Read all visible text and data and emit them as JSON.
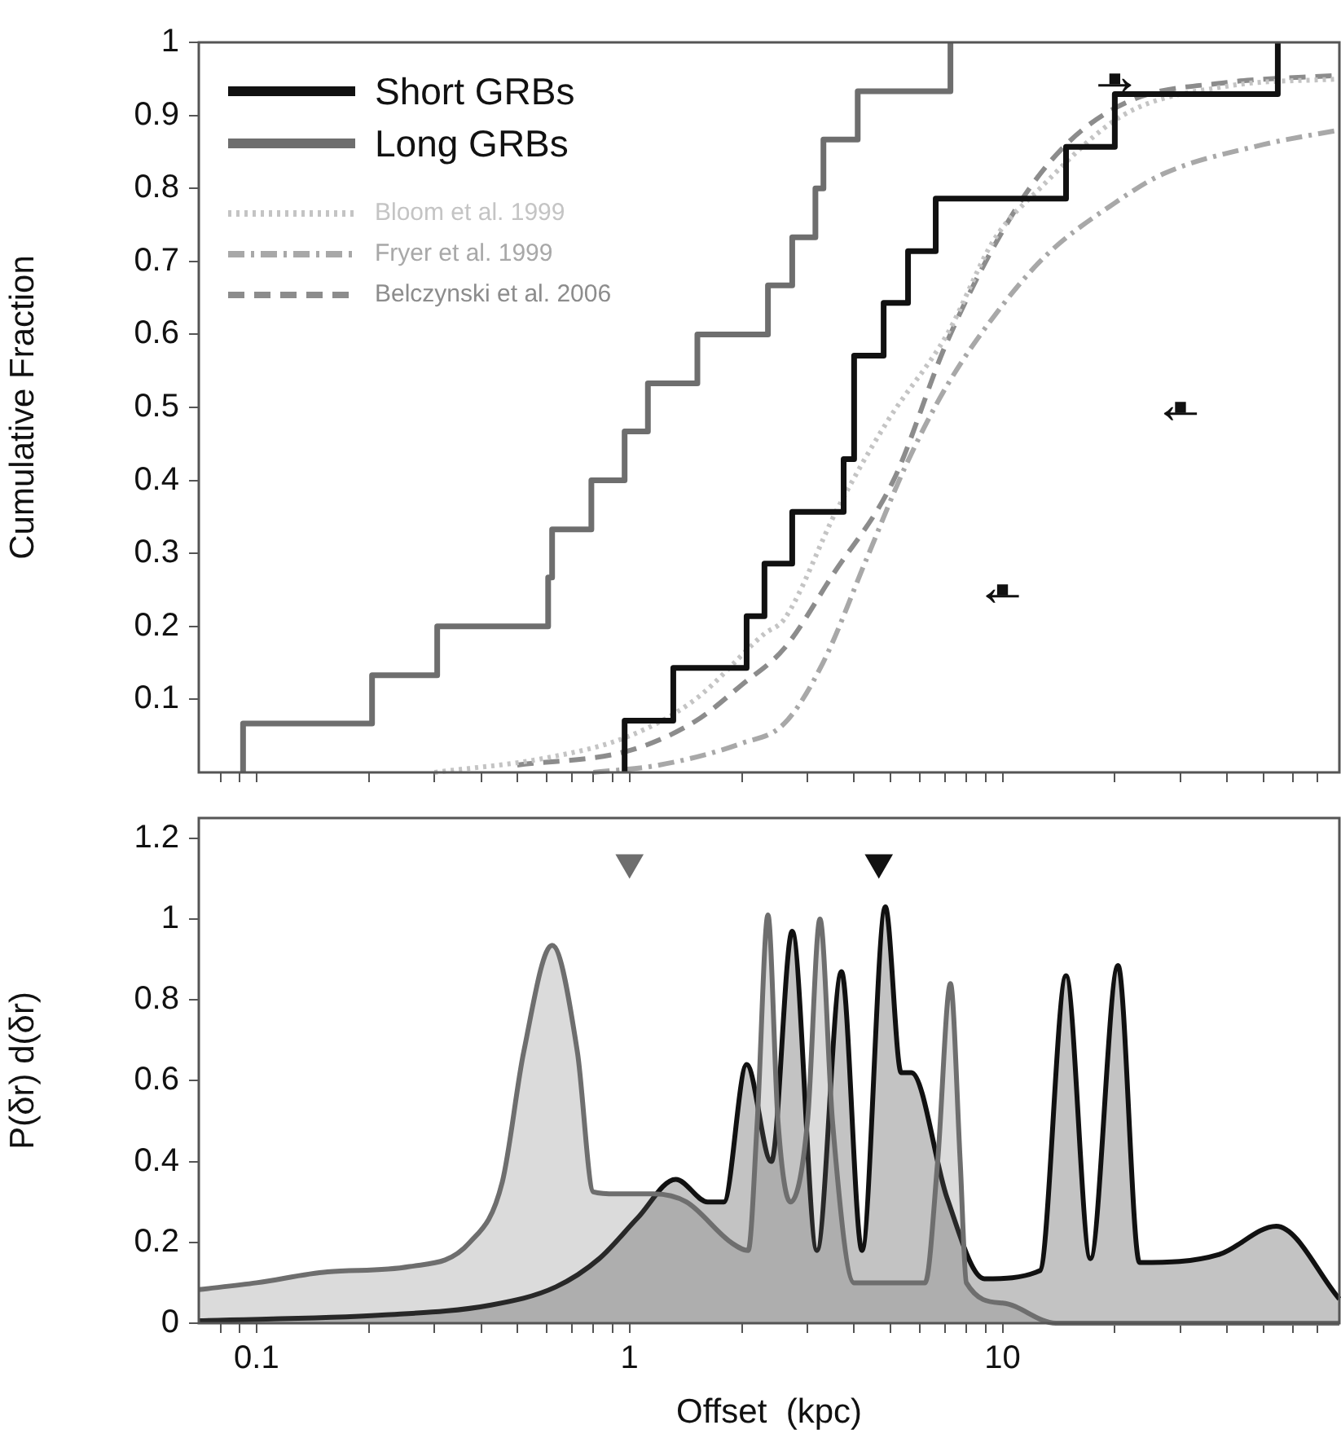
{
  "chart_data": [
    {
      "type": "line",
      "ylabel": "Cumulative Fraction",
      "log": "x",
      "xlim": [
        0.07,
        80
      ],
      "xticks": [
        {
          "value": 0.08,
          "label": null
        },
        {
          "value": 0.09,
          "label": null
        },
        {
          "value": 0.1,
          "label": null
        },
        {
          "value": 0.2,
          "label": null
        },
        {
          "value": 0.3,
          "label": null
        },
        {
          "value": 0.4,
          "label": null
        },
        {
          "value": 0.5,
          "label": null
        },
        {
          "value": 0.6,
          "label": null
        },
        {
          "value": 0.7,
          "label": null
        },
        {
          "value": 0.8,
          "label": null
        },
        {
          "value": 0.9,
          "label": null
        },
        {
          "value": 1,
          "label": null
        },
        {
          "value": 2,
          "label": null
        },
        {
          "value": 3,
          "label": null
        },
        {
          "value": 4,
          "label": null
        },
        {
          "value": 5,
          "label": null
        },
        {
          "value": 6,
          "label": null
        },
        {
          "value": 7,
          "label": null
        },
        {
          "value": 8,
          "label": null
        },
        {
          "value": 9,
          "label": null
        },
        {
          "value": 10,
          "label": null
        },
        {
          "value": 20,
          "label": null
        },
        {
          "value": 30,
          "label": null
        },
        {
          "value": 40,
          "label": null
        },
        {
          "value": 50,
          "label": null
        },
        {
          "value": 60,
          "label": null
        },
        {
          "value": 70,
          "label": null
        }
      ],
      "ylim": [
        0,
        1
      ],
      "yticks": [
        0.1,
        0.2,
        0.3,
        0.4,
        0.5,
        0.6,
        0.7,
        0.8,
        0.9,
        1
      ],
      "tick_labels": "y",
      "legend": "top left",
      "series": [
        {
          "name": "Short GRBs",
          "type": "step",
          "color": "#111111",
          "x": [
            0.97,
            0.97,
            1.31,
            2.06,
            2.3,
            2.73,
            3.75,
            4.0,
            4.0,
            4.8,
            5.58,
            6.62,
            14.8,
            20,
            54.7
          ],
          "values": [
            0,
            0.071,
            0.143,
            0.214,
            0.286,
            0.357,
            0.429,
            0.5,
            0.571,
            0.643,
            0.714,
            0.786,
            0.857,
            0.929,
            1
          ]
        },
        {
          "name": "Long GRBs",
          "type": "step",
          "color": "#6e6e6e",
          "x": [
            0.092,
            0.092,
            0.204,
            0.305,
            0.605,
            0.62,
            0.79,
            0.97,
            1.12,
            1.52,
            2.35,
            2.73,
            3.15,
            3.31,
            4.09,
            7.25
          ],
          "values": [
            0,
            0.067,
            0.133,
            0.2,
            0.267,
            0.333,
            0.4,
            0.467,
            0.533,
            0.6,
            0.667,
            0.733,
            0.8,
            0.867,
            0.933,
            1
          ]
        },
        {
          "name": "Bloom et al. 1999",
          "line_style": "dotted",
          "color": "#c4c4c4",
          "x": [
            0.3,
            0.6,
            1,
            1.5,
            2.3,
            2.6,
            3.6,
            4.9,
            7.1,
            9.5,
            12.6,
            21,
            40,
            80
          ],
          "values": [
            0,
            0.02,
            0.05,
            0.1,
            0.19,
            0.21,
            0.36,
            0.48,
            0.6,
            0.73,
            0.8,
            0.9,
            0.94,
            0.95
          ]
        },
        {
          "name": "Fryer et al. 1999",
          "line_style": "dashdot",
          "color": "#a8a8a8",
          "x": [
            0.8,
            1.2,
            2,
            2.6,
            3.3,
            4.3,
            5.5,
            7.1,
            10,
            13.2,
            20,
            27,
            50,
            80
          ],
          "values": [
            0,
            0.01,
            0.04,
            0.067,
            0.15,
            0.29,
            0.42,
            0.53,
            0.64,
            0.71,
            0.78,
            0.82,
            0.86,
            0.88
          ]
        },
        {
          "name": "Belczynski et al. 2006",
          "line_style": "dashed",
          "color": "#8c8c8c",
          "x": [
            0.5,
            1,
            1.5,
            2,
            2.6,
            3.5,
            5.1,
            7.1,
            10.8,
            14.8,
            22,
            40,
            80
          ],
          "values": [
            0.01,
            0.03,
            0.07,
            0.12,
            0.17,
            0.27,
            0.4,
            0.59,
            0.77,
            0.86,
            0.92,
            0.945,
            0.955
          ]
        },
        {
          "type": "scatter",
          "marker": "square",
          "color": "#111111",
          "x": [
            10,
            30,
            20
          ],
          "values": [
            0.25,
            0.5,
            0.95
          ]
        }
      ],
      "annotations": [
        {
          "text": "←",
          "x": 10,
          "y": 0.25
        },
        {
          "text": "←",
          "x": 30,
          "y": 0.5
        },
        {
          "text": "→",
          "x": 20,
          "y": 0.95
        }
      ]
    },
    {
      "type": "area",
      "xlabel": "Offset  (kpc)",
      "ylabel": "P(δr) d(δr)",
      "log": "x",
      "xlim": [
        0.07,
        80
      ],
      "xticks": [
        {
          "value": 0.08,
          "label": null
        },
        {
          "value": 0.09,
          "label": null
        },
        0.1,
        {
          "value": 0.2,
          "label": null
        },
        {
          "value": 0.3,
          "label": null
        },
        {
          "value": 0.4,
          "label": null
        },
        {
          "value": 0.5,
          "label": null
        },
        {
          "value": 0.6,
          "label": null
        },
        {
          "value": 0.7,
          "label": null
        },
        {
          "value": 0.8,
          "label": null
        },
        {
          "value": 0.9,
          "label": null
        },
        1,
        {
          "value": 2,
          "label": null
        },
        {
          "value": 3,
          "label": null
        },
        {
          "value": 4,
          "label": null
        },
        {
          "value": 5,
          "label": null
        },
        {
          "value": 6,
          "label": null
        },
        {
          "value": 7,
          "label": null
        },
        {
          "value": 8,
          "label": null
        },
        {
          "value": 9,
          "label": null
        },
        10,
        {
          "value": 20,
          "label": null
        },
        {
          "value": 30,
          "label": null
        },
        {
          "value": 40,
          "label": null
        },
        {
          "value": 50,
          "label": null
        },
        {
          "value": 60,
          "label": null
        },
        {
          "value": 70,
          "label": null
        }
      ],
      "ylim": [
        0,
        1.25
      ],
      "yticks": [
        0,
        0.2,
        0.4,
        0.6,
        0.8,
        1,
        1.2
      ],
      "series": [
        {
          "type": "scatter",
          "marker": "triangle",
          "color": "#6e6e6e",
          "x": [
            1
          ],
          "values": [
            1.14
          ]
        },
        {
          "type": "scatter",
          "marker": "triangle",
          "color": "#111111",
          "x": [
            4.66
          ],
          "values": [
            1.14
          ]
        },
        {
          "color": "#6e6e6e",
          "x": [
            0.07,
            0.1,
            0.155,
            0.257,
            0.373,
            0.456,
            0.52,
            0.62,
            0.725,
            0.8,
            0.92,
            1.16,
            1.42,
            1.87,
            2.08,
            2.2,
            2.35,
            2.5,
            2.7,
            3.0,
            3.24,
            3.5,
            4.0,
            6.2,
            6.7,
            7.25,
            7.7,
            8.0,
            10,
            13.9,
            80
          ],
          "values": [
            0.083,
            0.1,
            0.127,
            0.14,
            0.2,
            0.35,
            0.67,
            0.935,
            0.67,
            0.325,
            0.32,
            0.32,
            0.3,
            0.2,
            0.18,
            0.5,
            1.01,
            0.5,
            0.3,
            0.5,
            1.0,
            0.5,
            0.1,
            0.1,
            0.4,
            0.84,
            0.4,
            0.1,
            0.05,
            0,
            0
          ]
        },
        {
          "color": "#111111",
          "x": [
            0.07,
            0.217,
            0.425,
            0.635,
            0.83,
            1.05,
            1.33,
            1.62,
            1.79,
            2.06,
            2.4,
            2.73,
            3.18,
            3.7,
            4.2,
            4.85,
            5.35,
            5.7,
            7.1,
            8.94,
            12.6,
            14.8,
            17.2,
            20.4,
            23.3,
            38.1,
            54.2,
            80
          ],
          "values": [
            0.006,
            0.02,
            0.045,
            0.09,
            0.16,
            0.26,
            0.356,
            0.3,
            0.3,
            0.64,
            0.4,
            0.97,
            0.18,
            0.87,
            0.18,
            1.03,
            0.62,
            0.62,
            0.31,
            0.11,
            0.13,
            0.86,
            0.16,
            0.885,
            0.15,
            0.17,
            0.24,
            0.06
          ]
        }
      ]
    }
  ]
}
